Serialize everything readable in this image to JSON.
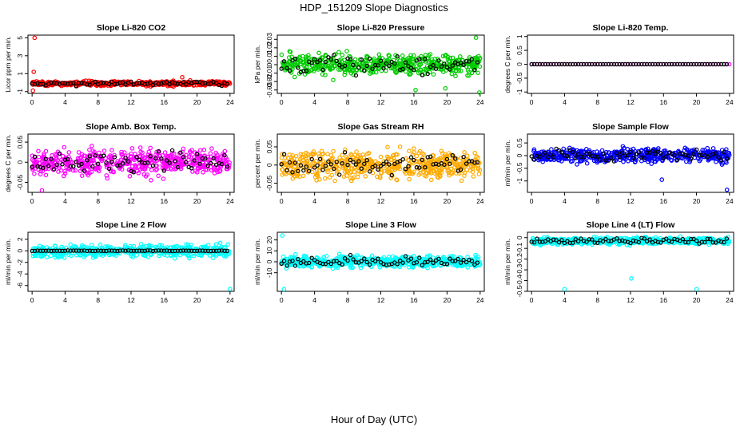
{
  "page": {
    "title": "HDP_151209  Slope Diagnostics",
    "xlabel": "Hour of Day (UTC)"
  },
  "chart_data": [
    {
      "type": "scatter",
      "title": "Slope Li-820 CO2",
      "ylabel": "Licor ppm per min.",
      "yticks": [
        -1,
        1,
        3,
        5
      ],
      "ylim": [
        -1.2,
        5.3
      ],
      "xticks": [
        0,
        4,
        8,
        12,
        16,
        20,
        24
      ],
      "xlim": [
        -0.5,
        24.5
      ],
      "color": "#ff0000",
      "center": -0.1,
      "spread": 0.25,
      "dense": true,
      "outliers": [
        [
          0.3,
          5.0
        ],
        [
          0.1,
          -0.9
        ],
        [
          0.2,
          1.2
        ],
        [
          18.2,
          0.6
        ]
      ]
    },
    {
      "type": "scatter",
      "title": "Slope Li-820 Pressure",
      "ylabel": "kPa per min.",
      "yticks": [
        -0.03,
        -0.02,
        -0.01,
        0.0,
        0.01,
        0.02,
        0.03
      ],
      "ylim": [
        -0.034,
        0.035
      ],
      "xticks": [
        0,
        4,
        8,
        12,
        16,
        20,
        24
      ],
      "xlim": [
        -0.5,
        24.5
      ],
      "color": "#00cc00",
      "center": 0.0,
      "spread": 0.012,
      "dense": true,
      "outliers": [
        [
          23.5,
          0.032
        ],
        [
          16.2,
          -0.03
        ],
        [
          19.8,
          -0.028
        ],
        [
          23.9,
          -0.033
        ]
      ]
    },
    {
      "type": "scatter",
      "title": "Slope Li-820 Temp.",
      "ylabel": "degrees C per min.",
      "yticks": [
        -1.0,
        -0.5,
        0.0,
        0.5,
        1.0
      ],
      "ylim": [
        -1.05,
        1.05
      ],
      "xticks": [
        0,
        4,
        8,
        12,
        16,
        20,
        24
      ],
      "xlim": [
        -0.5,
        24.5
      ],
      "color": "#ff00ff",
      "center": 0.0,
      "spread": 0.0,
      "dense": false,
      "outliers": []
    },
    {
      "type": "scatter",
      "title": "Slope Amb. Box Temp.",
      "ylabel": "degrees C per min.",
      "yticks": [
        -0.05,
        0.0,
        0.05
      ],
      "ylim": [
        -0.075,
        0.07
      ],
      "xticks": [
        0,
        4,
        8,
        12,
        16,
        20,
        24
      ],
      "xlim": [
        -0.5,
        24.5
      ],
      "color": "#ff00ff",
      "center": 0.0,
      "spread": 0.03,
      "dense": true,
      "outliers": [
        [
          1.2,
          -0.07
        ]
      ]
    },
    {
      "type": "scatter",
      "title": "Slope Gas Stream RH",
      "ylabel": "percent per min.",
      "yticks": [
        -0.05,
        0.0,
        0.05
      ],
      "ylim": [
        -0.075,
        0.085
      ],
      "xticks": [
        0,
        4,
        8,
        12,
        16,
        20,
        24
      ],
      "xlim": [
        -0.5,
        24.5
      ],
      "color": "#ffaa00",
      "center": 0.0,
      "spread": 0.035,
      "dense": true,
      "outliers": []
    },
    {
      "type": "scatter",
      "title": "Slope Sample Flow",
      "ylabel": "ml/min per min.",
      "yticks": [
        -1.0,
        -0.5,
        0.0,
        0.5
      ],
      "ylim": [
        -1.45,
        0.85
      ],
      "xticks": [
        0,
        4,
        8,
        12,
        16,
        20,
        24
      ],
      "xlim": [
        -0.5,
        24.5
      ],
      "color": "#0000ff",
      "center": 0.0,
      "spread": 0.25,
      "dense": true,
      "outliers": [
        [
          23.7,
          -1.35
        ],
        [
          15.8,
          -0.95
        ]
      ]
    },
    {
      "type": "scatter",
      "title": "Slope Line 2 Flow",
      "ylabel": "ml/min per min.",
      "yticks": [
        -6,
        -4,
        -2,
        0,
        2
      ],
      "ylim": [
        -7,
        3.2
      ],
      "xticks": [
        0,
        4,
        8,
        12,
        16,
        20,
        24
      ],
      "xlim": [
        -0.5,
        24.5
      ],
      "color": "#00ffff",
      "center": 0.0,
      "spread": 1.0,
      "dense": true,
      "outliers": [
        [
          24.0,
          -6.6
        ]
      ]
    },
    {
      "type": "scatter",
      "title": "Slope Line 3 Flow",
      "ylabel": "ml/min per min.",
      "yticks": [
        -10,
        0,
        10,
        20
      ],
      "ylim": [
        -27,
        27
      ],
      "xticks": [
        0,
        4,
        8,
        12,
        16,
        20,
        24
      ],
      "xlim": [
        -0.5,
        24.5
      ],
      "color": "#00ffff",
      "center": 0.0,
      "spread": 5.0,
      "dense": true,
      "outliers": [
        [
          0.1,
          24
        ],
        [
          0.3,
          -25
        ]
      ]
    },
    {
      "type": "scatter",
      "title": "Slope Line 4 (LT) Flow",
      "ylabel": "ml/min per min.",
      "yticks": [
        -0.5,
        -0.4,
        -0.3,
        -0.2,
        -0.1,
        0.0
      ],
      "ylim": [
        -0.5,
        0.05
      ],
      "xticks": [
        0,
        4,
        8,
        12,
        16,
        20,
        24
      ],
      "xlim": [
        -0.5,
        24.5
      ],
      "color": "#00ffff",
      "center": -0.03,
      "spread": 0.03,
      "dense": true,
      "outliers": [
        [
          4.0,
          -0.48
        ],
        [
          12.1,
          -0.38
        ],
        [
          20.0,
          -0.48
        ]
      ]
    }
  ]
}
